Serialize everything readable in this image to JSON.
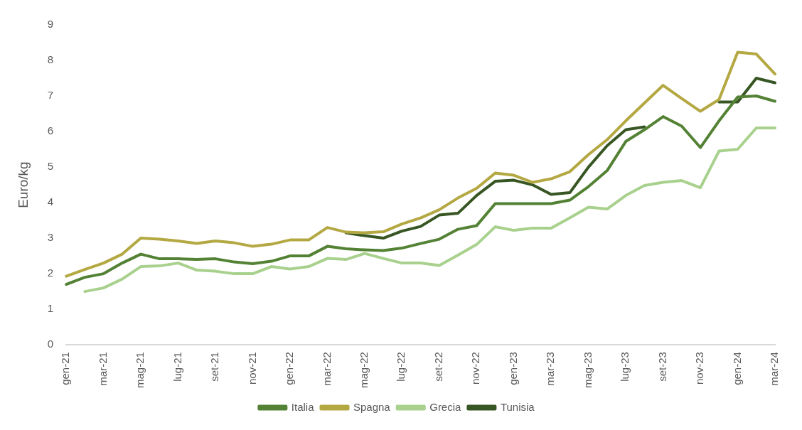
{
  "chart_data": {
    "type": "line",
    "ylabel": "Euro/kg",
    "categories": [
      "gen-21",
      null,
      "mar-21",
      null,
      "mag-21",
      null,
      "lug-21",
      null,
      "set-21",
      null,
      "nov-21",
      null,
      "gen-22",
      null,
      "mar-22",
      null,
      "mag-22",
      null,
      "lug-22",
      null,
      "set-22",
      null,
      "nov-22",
      null,
      "gen-23",
      null,
      "mar-23",
      null,
      "mag-23",
      null,
      "lug-23",
      null,
      "set-23",
      null,
      "nov-23",
      null,
      "gen-24",
      null,
      "mar-24"
    ],
    "series": [
      {
        "name": "Italia",
        "color": "#548235",
        "values": [
          1.7,
          1.9,
          2.0,
          2.3,
          2.55,
          2.42,
          2.42,
          2.4,
          2.42,
          2.33,
          2.28,
          2.35,
          2.5,
          2.5,
          2.77,
          2.7,
          2.67,
          2.65,
          2.72,
          2.85,
          2.97,
          3.25,
          3.35,
          3.97,
          3.97,
          3.97,
          3.97,
          4.07,
          4.45,
          4.9,
          5.72,
          6.05,
          6.42,
          6.15,
          5.55,
          6.3,
          6.97,
          7.0,
          6.85
        ]
      },
      {
        "name": "Spagna",
        "color": "#b4a843",
        "values": [
          1.93,
          2.12,
          2.3,
          2.55,
          3.0,
          2.97,
          2.92,
          2.85,
          2.92,
          2.87,
          2.77,
          2.83,
          2.95,
          2.95,
          3.3,
          3.17,
          3.15,
          3.18,
          3.4,
          3.57,
          3.8,
          4.13,
          4.4,
          4.83,
          4.77,
          4.57,
          4.67,
          4.87,
          5.35,
          5.77,
          6.3,
          6.8,
          7.3,
          6.93,
          6.57,
          6.9,
          8.23,
          8.18,
          7.62
        ]
      },
      {
        "name": "Grecia",
        "color": "#a9d18e",
        "values": [
          null,
          1.5,
          1.6,
          1.85,
          2.2,
          2.22,
          2.3,
          2.1,
          2.07,
          2.0,
          2.0,
          2.2,
          2.13,
          2.2,
          2.43,
          2.4,
          2.57,
          2.43,
          2.3,
          2.3,
          2.23,
          2.52,
          2.82,
          3.32,
          3.22,
          3.28,
          3.28,
          3.57,
          3.87,
          3.82,
          4.2,
          4.48,
          4.57,
          4.62,
          4.42,
          5.45,
          5.5,
          6.1,
          6.1
        ]
      },
      {
        "name": "Tunisia",
        "color": "#375623",
        "values": [
          null,
          null,
          null,
          null,
          null,
          null,
          null,
          null,
          null,
          null,
          null,
          null,
          null,
          null,
          null,
          3.15,
          3.07,
          3.0,
          3.2,
          3.33,
          3.65,
          3.7,
          4.2,
          4.6,
          4.63,
          4.5,
          4.23,
          4.28,
          5.0,
          5.6,
          6.05,
          6.13,
          null,
          null,
          null,
          6.83,
          6.83,
          7.5,
          7.37
        ]
      }
    ],
    "ylim": [
      0,
      9
    ],
    "yticks": [
      0,
      1,
      2,
      3,
      4,
      5,
      6,
      7,
      8,
      9
    ],
    "grid": false,
    "legend": "bottom",
    "marker": "none",
    "line_style": "solid"
  }
}
